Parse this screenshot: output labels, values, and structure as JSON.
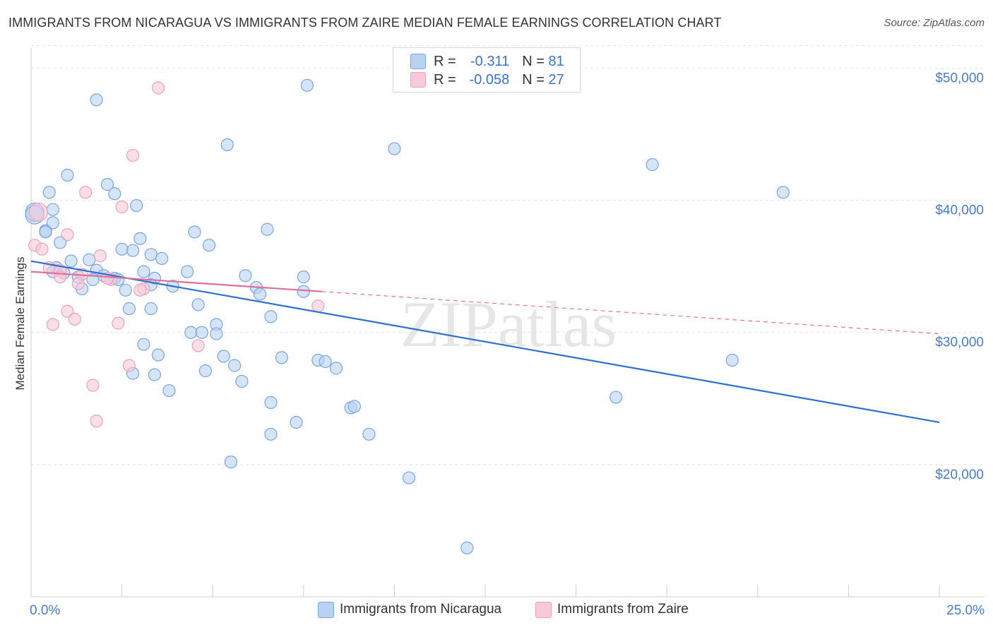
{
  "chart_data": {
    "type": "scatter",
    "title": "IMMIGRANTS FROM NICARAGUA VS IMMIGRANTS FROM ZAIRE MEDIAN FEMALE EARNINGS CORRELATION CHART",
    "source": "Source: ZipAtlas.com",
    "xlabel": "",
    "ylabel": "Median Female Earnings",
    "xlim": [
      0,
      25
    ],
    "ylim": [
      10000,
      52000
    ],
    "x_tick_labels": [
      "0.0%",
      "25.0%"
    ],
    "y_ticks": [
      20000,
      30000,
      40000,
      50000
    ],
    "y_tick_labels": [
      "$20,000",
      "$30,000",
      "$40,000",
      "$50,000"
    ],
    "watermark": "ZIPatlas",
    "legend": [
      {
        "r_label": "R = ",
        "r_value": "-0.311",
        "n_label": "N = ",
        "n_value": "81"
      },
      {
        "r_label": "R = ",
        "r_value": "-0.058",
        "n_label": "N = ",
        "n_value": "27"
      }
    ],
    "series": [
      {
        "name": "Immigrants from Nicaragua",
        "color": "#7aa6e0",
        "fill": "#b9d2f2",
        "line_color": "#2f6fcf",
        "trend": {
          "x0": 0,
          "y0": 35400,
          "x1": 25,
          "y1": 23200,
          "dashed_from": null
        },
        "points": [
          [
            0.1,
            39100
          ],
          [
            0.1,
            38900
          ],
          [
            0.4,
            37700
          ],
          [
            0.5,
            40600
          ],
          [
            0.6,
            39300
          ],
          [
            1.0,
            41900
          ],
          [
            0.4,
            37600
          ],
          [
            0.6,
            38300
          ],
          [
            0.8,
            36800
          ],
          [
            1.1,
            35400
          ],
          [
            1.6,
            35500
          ],
          [
            1.8,
            47600
          ],
          [
            2.1,
            41200
          ],
          [
            2.3,
            40500
          ],
          [
            2.9,
            39600
          ],
          [
            2.5,
            36300
          ],
          [
            2.8,
            36200
          ],
          [
            3.0,
            37100
          ],
          [
            3.3,
            35900
          ],
          [
            3.6,
            35600
          ],
          [
            0.7,
            34900
          ],
          [
            0.6,
            34600
          ],
          [
            0.9,
            34500
          ],
          [
            1.3,
            34200
          ],
          [
            1.4,
            33300
          ],
          [
            1.8,
            34700
          ],
          [
            2.0,
            34300
          ],
          [
            2.3,
            34100
          ],
          [
            2.6,
            33200
          ],
          [
            2.7,
            31800
          ],
          [
            3.1,
            34600
          ],
          [
            3.3,
            31800
          ],
          [
            3.4,
            34100
          ],
          [
            3.9,
            33500
          ],
          [
            4.3,
            34600
          ],
          [
            4.5,
            37600
          ],
          [
            4.9,
            36600
          ],
          [
            4.6,
            32100
          ],
          [
            4.4,
            30000
          ],
          [
            4.7,
            30000
          ],
          [
            5.1,
            30600
          ],
          [
            5.1,
            29900
          ],
          [
            3.1,
            29100
          ],
          [
            3.5,
            28300
          ],
          [
            3.4,
            26800
          ],
          [
            3.8,
            25600
          ],
          [
            2.8,
            26900
          ],
          [
            5.3,
            28200
          ],
          [
            4.8,
            27100
          ],
          [
            5.6,
            27500
          ],
          [
            5.8,
            26300
          ],
          [
            5.9,
            34300
          ],
          [
            6.2,
            33400
          ],
          [
            6.3,
            32900
          ],
          [
            6.5,
            37800
          ],
          [
            6.6,
            31200
          ],
          [
            6.9,
            28100
          ],
          [
            6.6,
            24700
          ],
          [
            6.6,
            22300
          ],
          [
            7.3,
            23200
          ],
          [
            7.5,
            34200
          ],
          [
            7.5,
            33100
          ],
          [
            7.9,
            27900
          ],
          [
            8.1,
            27800
          ],
          [
            8.4,
            27300
          ],
          [
            8.8,
            24300
          ],
          [
            8.9,
            24400
          ],
          [
            9.3,
            22300
          ],
          [
            10.4,
            19000
          ],
          [
            12.0,
            13700
          ],
          [
            10.0,
            43900
          ],
          [
            7.6,
            48700
          ],
          [
            5.4,
            44200
          ],
          [
            16.1,
            25100
          ],
          [
            17.1,
            42700
          ],
          [
            19.3,
            27900
          ],
          [
            20.7,
            40600
          ],
          [
            1.7,
            34000
          ],
          [
            5.5,
            20200
          ],
          [
            3.3,
            33600
          ],
          [
            2.4,
            34000
          ]
        ]
      },
      {
        "name": "Immigrants from Zaire",
        "color": "#eea0b8",
        "fill": "#f8c9d8",
        "line_color": "#e0709a",
        "trend": {
          "x0": 0,
          "y0": 34600,
          "x1": 25,
          "y1": 29900,
          "dashed_from": 8.0
        },
        "points": [
          [
            0.2,
            39100
          ],
          [
            0.1,
            36600
          ],
          [
            0.3,
            36300
          ],
          [
            0.5,
            34900
          ],
          [
            0.8,
            34700
          ],
          [
            0.8,
            34200
          ],
          [
            1.0,
            31600
          ],
          [
            1.2,
            31000
          ],
          [
            0.6,
            30600
          ],
          [
            1.0,
            37400
          ],
          [
            1.5,
            40600
          ],
          [
            1.4,
            34400
          ],
          [
            1.3,
            33700
          ],
          [
            1.9,
            35800
          ],
          [
            2.2,
            34000
          ],
          [
            2.4,
            30700
          ],
          [
            2.5,
            39500
          ],
          [
            2.8,
            43400
          ],
          [
            3.1,
            33300
          ],
          [
            2.7,
            27500
          ],
          [
            1.7,
            26000
          ],
          [
            1.8,
            23300
          ],
          [
            3.5,
            48500
          ],
          [
            4.6,
            29000
          ],
          [
            7.9,
            32000
          ],
          [
            2.1,
            34100
          ],
          [
            3.0,
            33200
          ]
        ]
      }
    ]
  },
  "bottom_legend": [
    "Immigrants from Nicaragua",
    "Immigrants from Zaire"
  ]
}
